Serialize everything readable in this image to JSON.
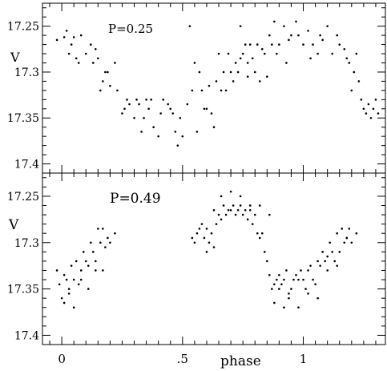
{
  "chart_data": [
    {
      "type": "scatter",
      "panel": "top",
      "annotation": "P=0.25",
      "ylabel": "V",
      "xlabel": "",
      "xlim": [
        -0.08,
        1.34
      ],
      "ylim": [
        17.225,
        17.41
      ],
      "y_inverted": true,
      "y_ticks": [
        17.25,
        17.3,
        17.35,
        17.4
      ],
      "y_tick_labels": [
        "17.25",
        "17.3",
        "17.35",
        "17.4"
      ],
      "grid": false,
      "series": [
        {
          "x": [
            -0.02,
            0.01,
            0.02,
            0.03,
            0.04,
            0.05,
            0.06,
            0.07,
            0.08,
            0.1,
            0.12,
            0.13,
            0.14,
            0.15,
            0.16,
            0.17,
            0.18,
            0.19,
            0.2,
            0.22,
            0.23,
            0.25,
            0.26,
            0.27,
            0.28,
            0.3,
            0.31,
            0.32,
            0.33,
            0.34,
            0.35,
            0.37,
            0.38,
            0.4,
            0.42,
            0.44,
            0.45,
            0.47,
            0.49,
            0.5,
            0.52,
            0.54,
            0.55,
            0.57,
            0.58,
            0.6,
            0.61,
            0.63,
            0.64,
            0.65,
            0.66,
            0.67,
            0.69,
            0.7,
            0.71,
            0.72,
            0.73,
            0.74,
            0.75,
            0.76,
            0.77,
            0.78,
            0.79,
            0.8,
            0.81,
            0.82,
            0.84,
            0.85,
            0.86,
            0.87,
            0.88,
            0.89,
            0.9,
            0.92,
            0.93,
            0.94,
            0.95,
            0.97,
            0.98,
            1.0,
            1.02,
            1.03,
            1.04,
            1.06,
            1.07,
            1.08,
            1.1,
            1.12,
            1.14,
            1.15,
            1.17,
            1.18,
            1.19,
            1.2,
            1.21,
            1.22,
            1.23,
            1.24,
            1.25,
            1.26,
            1.27,
            1.28,
            1.29,
            1.3,
            1.31,
            0.53,
            0.56,
            0.59,
            0.62,
            0.68,
            0.36,
            0.41,
            0.46,
            0.48,
            0.74,
            0.77,
            0.83
          ],
          "y": [
            17.265,
            17.262,
            17.255,
            17.28,
            17.27,
            17.262,
            17.285,
            17.29,
            17.26,
            17.28,
            17.27,
            17.29,
            17.275,
            17.285,
            17.32,
            17.31,
            17.3,
            17.3,
            17.315,
            17.29,
            17.32,
            17.345,
            17.34,
            17.33,
            17.335,
            17.35,
            17.33,
            17.335,
            17.365,
            17.35,
            17.33,
            17.33,
            17.36,
            17.37,
            17.33,
            17.335,
            17.34,
            17.365,
            17.35,
            17.37,
            17.335,
            17.32,
            17.29,
            17.3,
            17.32,
            17.34,
            17.315,
            17.36,
            17.31,
            17.28,
            17.32,
            17.3,
            17.28,
            17.3,
            17.31,
            17.29,
            17.3,
            17.25,
            17.28,
            17.27,
            17.29,
            17.27,
            17.285,
            17.3,
            17.27,
            17.31,
            17.28,
            17.305,
            17.26,
            17.27,
            17.245,
            17.28,
            17.27,
            17.25,
            17.29,
            17.265,
            17.26,
            17.245,
            17.26,
            17.27,
            17.255,
            17.285,
            17.27,
            17.28,
            17.26,
            17.265,
            17.25,
            17.28,
            17.26,
            17.27,
            17.275,
            17.285,
            17.29,
            17.32,
            17.3,
            17.28,
            17.31,
            17.33,
            17.34,
            17.345,
            17.335,
            17.35,
            17.34,
            17.33,
            17.345,
            17.25,
            17.365,
            17.34,
            17.345,
            17.32,
            17.34,
            17.345,
            17.345,
            17.38,
            17.285,
            17.305,
            17.275
          ]
        }
      ]
    },
    {
      "type": "scatter",
      "panel": "bottom",
      "annotation": "P=0.49",
      "ylabel": "V",
      "xlabel": "phase",
      "xlim": [
        -0.08,
        1.34
      ],
      "ylim": [
        17.225,
        17.41
      ],
      "y_inverted": true,
      "y_ticks": [
        17.25,
        17.3,
        17.35,
        17.4
      ],
      "y_tick_labels": [
        "17.25",
        "17.3",
        "17.35",
        "17.4"
      ],
      "x_ticks": [
        0,
        0.5,
        1
      ],
      "x_tick_labels": [
        "0",
        ".5",
        "1"
      ],
      "grid": false,
      "series": [
        {
          "x": [
            -0.02,
            -0.01,
            0.0,
            0.01,
            0.02,
            0.03,
            0.04,
            0.05,
            0.06,
            0.07,
            0.08,
            0.09,
            0.1,
            0.11,
            0.12,
            0.13,
            0.14,
            0.15,
            0.16,
            0.17,
            0.18,
            0.19,
            0.2,
            0.22,
            0.01,
            0.03,
            0.05,
            0.08,
            0.11,
            0.14,
            0.17,
            0.54,
            0.55,
            0.56,
            0.57,
            0.58,
            0.59,
            0.6,
            0.61,
            0.62,
            0.63,
            0.64,
            0.65,
            0.66,
            0.67,
            0.68,
            0.69,
            0.7,
            0.71,
            0.72,
            0.73,
            0.74,
            0.75,
            0.76,
            0.77,
            0.78,
            0.79,
            0.8,
            0.81,
            0.82,
            0.83,
            0.84,
            0.85,
            0.86,
            0.87,
            0.88,
            0.89,
            0.9,
            0.91,
            0.92,
            0.93,
            0.94,
            0.95,
            0.96,
            0.97,
            0.98,
            0.99,
            1.0,
            1.01,
            1.02,
            1.03,
            1.04,
            1.05,
            1.06,
            1.07,
            1.08,
            1.09,
            1.1,
            1.11,
            1.12,
            1.13,
            1.14,
            1.15,
            1.16,
            1.17,
            1.18,
            1.19,
            1.2,
            1.22,
            0.6,
            0.63,
            0.66,
            0.7,
            0.74,
            0.78,
            0.82,
            0.86,
            0.9,
            0.94,
            0.98,
            1.02,
            1.06,
            1.1,
            1.14,
            1.18,
            0.88,
            0.92
          ],
          "y": [
            17.33,
            17.345,
            17.36,
            17.335,
            17.34,
            17.35,
            17.325,
            17.34,
            17.32,
            17.345,
            17.33,
            17.31,
            17.32,
            17.325,
            17.3,
            17.31,
            17.32,
            17.285,
            17.3,
            17.285,
            17.305,
            17.295,
            17.3,
            17.29,
            17.365,
            17.355,
            17.37,
            17.34,
            17.35,
            17.33,
            17.33,
            17.295,
            17.3,
            17.29,
            17.285,
            17.28,
            17.295,
            17.285,
            17.3,
            17.29,
            17.265,
            17.28,
            17.27,
            17.275,
            17.26,
            17.27,
            17.265,
            17.265,
            17.26,
            17.27,
            17.265,
            17.26,
            17.27,
            17.265,
            17.275,
            17.26,
            17.28,
            17.27,
            17.29,
            17.295,
            17.29,
            17.31,
            17.32,
            17.335,
            17.35,
            17.345,
            17.34,
            17.335,
            17.345,
            17.34,
            17.33,
            17.355,
            17.35,
            17.34,
            17.335,
            17.34,
            17.33,
            17.34,
            17.35,
            17.33,
            17.325,
            17.34,
            17.345,
            17.32,
            17.325,
            17.31,
            17.32,
            17.315,
            17.3,
            17.31,
            17.32,
            17.29,
            17.31,
            17.285,
            17.3,
            17.295,
            17.285,
            17.3,
            17.29,
            17.31,
            17.305,
            17.25,
            17.245,
            17.25,
            17.265,
            17.26,
            17.27,
            17.35,
            17.36,
            17.37,
            17.355,
            17.36,
            17.33,
            17.325,
            17.295,
            17.365,
            17.37
          ]
        }
      ]
    }
  ]
}
